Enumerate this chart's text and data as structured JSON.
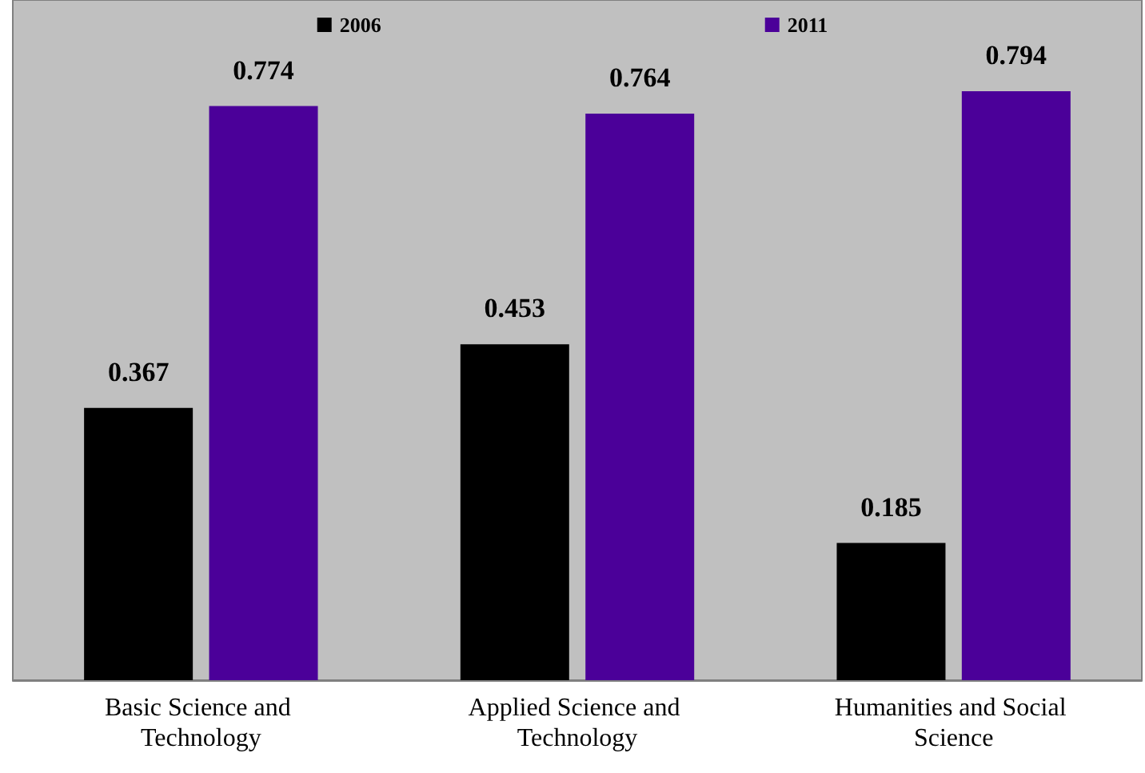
{
  "chart_data": {
    "type": "bar",
    "categories": [
      "Basic Science and Technology",
      "Applied Science and Technology",
      "Humanities and Social Science"
    ],
    "series": [
      {
        "name": "2006",
        "color": "#000000",
        "values": [
          0.367,
          0.453,
          0.185
        ]
      },
      {
        "name": "2011",
        "color": "#4b0099",
        "values": [
          0.774,
          0.764,
          0.794
        ]
      }
    ],
    "data_labels": true,
    "legend": "top"
  }
}
